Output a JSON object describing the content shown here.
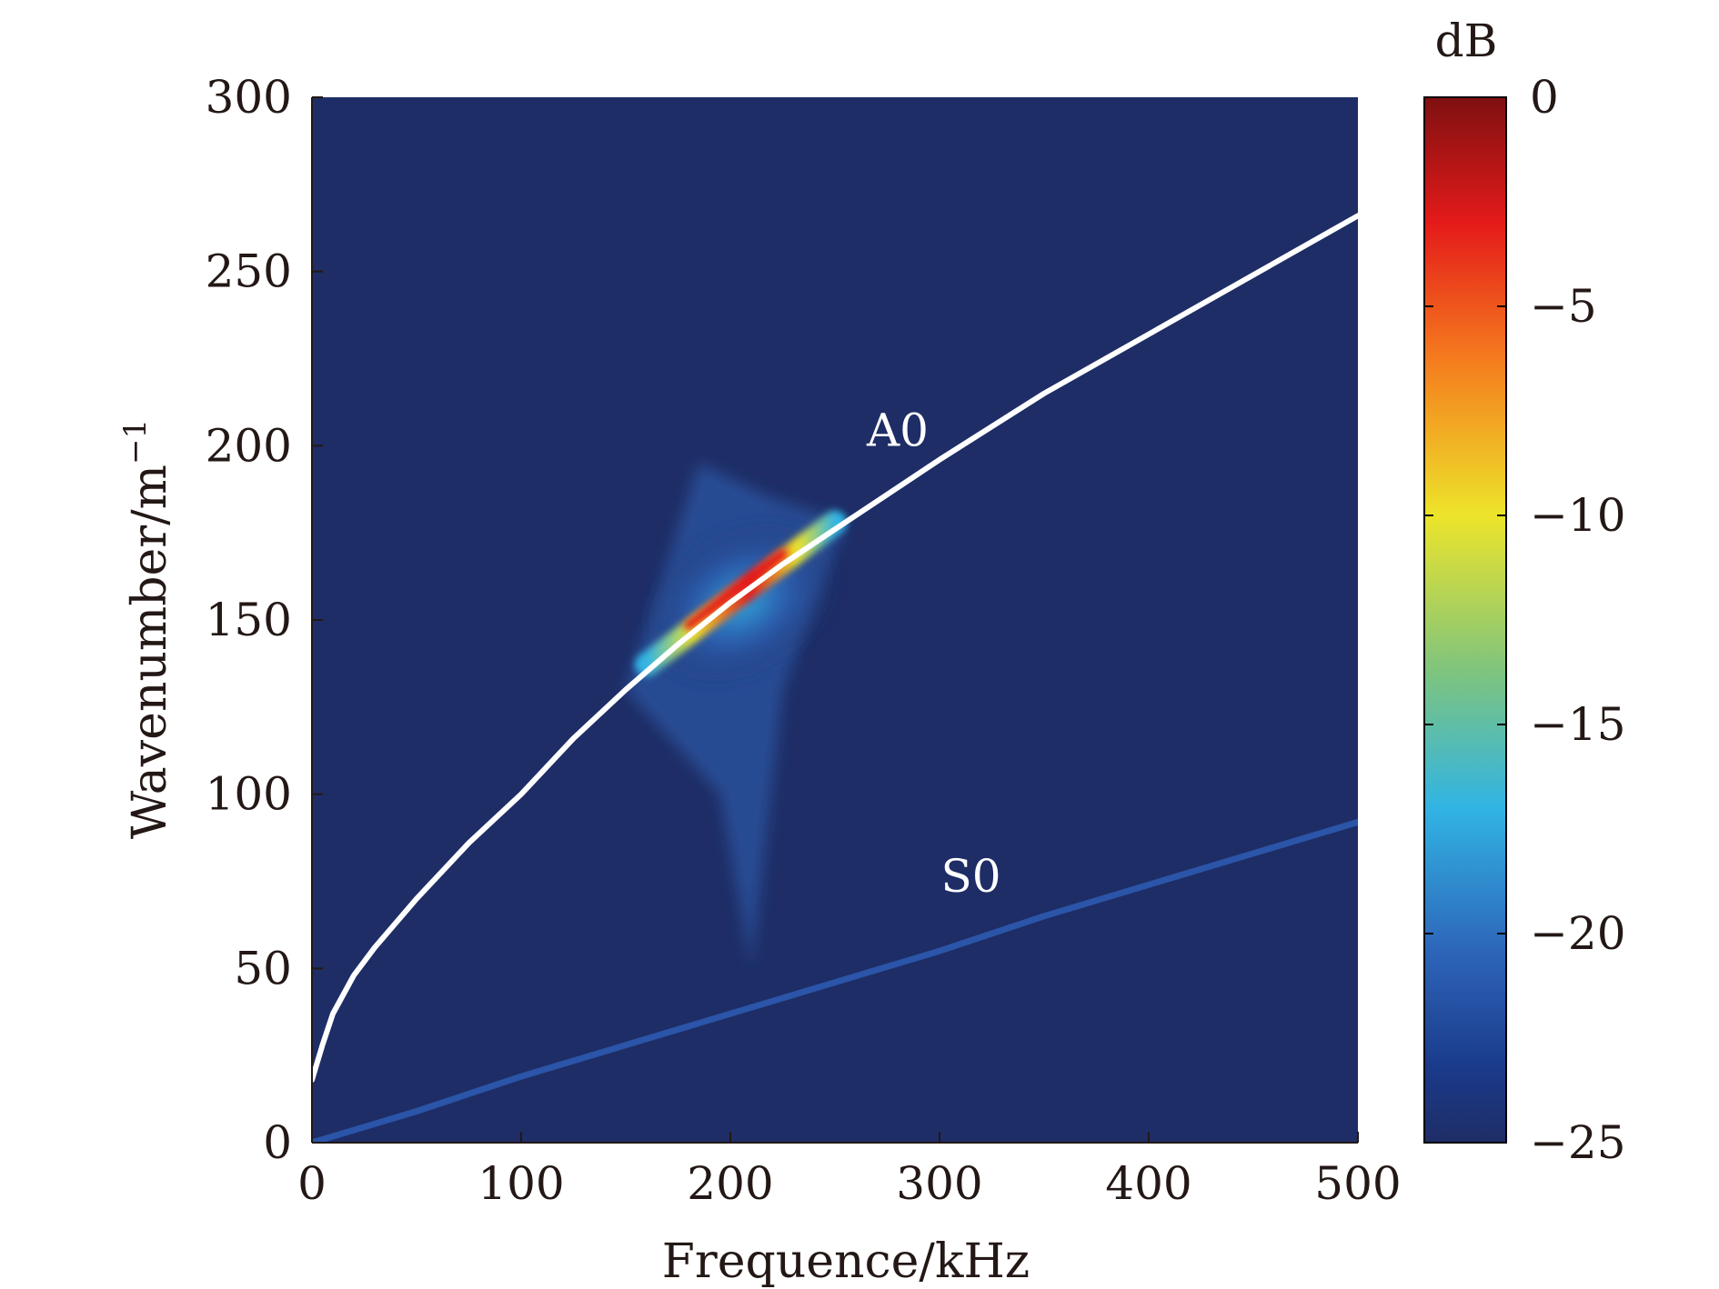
{
  "chart_data": {
    "type": "heatmap",
    "xlabel": "Frequence/kHz",
    "ylabel": "Wavenumber/m",
    "ylabel_superscript": "−1",
    "xlim": [
      0,
      500
    ],
    "ylim": [
      0,
      300
    ],
    "x_ticks": [
      "0",
      "100",
      "200",
      "300",
      "400",
      "500"
    ],
    "y_ticks": [
      "0",
      "50",
      "100",
      "150",
      "200",
      "250",
      "300"
    ],
    "grid": false,
    "background_color": "#1e2d66",
    "colorbar": {
      "title": "dB",
      "range": [
        -25,
        0
      ],
      "ticks": [
        "0",
        "−5",
        "−10",
        "−15",
        "−20",
        "−25"
      ],
      "colormap": "jet",
      "colors": [
        "#7f1010",
        "#e41a1a",
        "#f57b1e",
        "#ede42a",
        "#7ec47e",
        "#31b4e4",
        "#2d64b8",
        "#1a3a8a",
        "#1e2d66"
      ]
    },
    "series": [
      {
        "name": "A0",
        "color": "#ffffff",
        "x": [
          0,
          5,
          10,
          20,
          30,
          50,
          75,
          100,
          125,
          150,
          175,
          200,
          225,
          250,
          275,
          300,
          350,
          400,
          450,
          500
        ],
        "y": [
          18,
          28,
          37,
          48,
          56,
          70,
          86,
          100,
          116,
          130,
          143,
          155,
          166,
          176,
          186,
          196,
          215,
          232,
          249,
          266
        ]
      },
      {
        "name": "S0",
        "color": "#2a55a8",
        "x": [
          0,
          50,
          100,
          150,
          200,
          250,
          300,
          350,
          400,
          450,
          500
        ],
        "y": [
          0,
          9,
          19,
          28,
          37,
          46,
          55,
          65,
          74,
          83,
          92
        ]
      }
    ],
    "hotspot": {
      "peak_db": 0,
      "frequency_range": [
        150,
        260
      ],
      "wavenumber_range": [
        50,
        195
      ]
    }
  }
}
